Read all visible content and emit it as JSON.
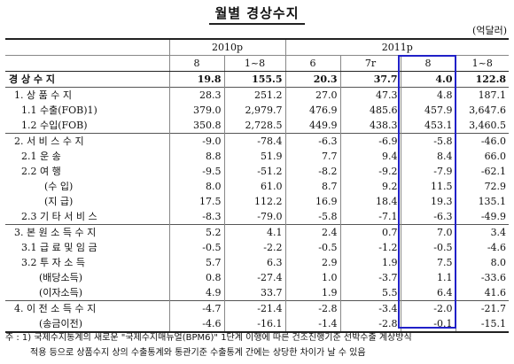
{
  "title": "월별 경상수지",
  "unit": "(억달러)",
  "header": {
    "group_2010": "2010p",
    "group_2011": "2011p",
    "columns": [
      "8",
      "1~8",
      "6",
      "7r",
      "8",
      "1~8"
    ]
  },
  "rows": [
    {
      "label": "경 상 수 지",
      "values": [
        "19.8",
        "155.5",
        "20.3",
        "37.7",
        "4.0",
        "122.8"
      ]
    },
    {
      "label": "1. 상 품 수 지",
      "values": [
        "28.3",
        "251.2",
        "27.0",
        "47.3",
        "4.8",
        "187.1"
      ]
    },
    {
      "label": "1.1 수출(FOB)1)",
      "values": [
        "379.0",
        "2,979.7",
        "476.9",
        "485.6",
        "457.9",
        "3,647.6"
      ]
    },
    {
      "label": "1.2 수입(FOB)",
      "values": [
        "350.8",
        "2,728.5",
        "449.9",
        "438.3",
        "453.1",
        "3,460.5"
      ]
    },
    {
      "label": "2. 서 비 스 수 지",
      "values": [
        "-9.0",
        "-78.4",
        "-6.3",
        "-6.9",
        "-5.8",
        "-46.0"
      ]
    },
    {
      "label": "2.1 운     송",
      "values": [
        "8.8",
        "51.9",
        "7.7",
        "9.4",
        "8.4",
        "66.0"
      ]
    },
    {
      "label": "2.2 여     행",
      "values": [
        "-9.5",
        "-51.2",
        "-8.2",
        "-9.2",
        "-7.9",
        "-62.1"
      ]
    },
    {
      "label": "(수     입)",
      "values": [
        "8.0",
        "61.0",
        "8.7",
        "9.2",
        "11.5",
        "72.9"
      ]
    },
    {
      "label": "(지     급)",
      "values": [
        "17.5",
        "112.2",
        "16.9",
        "18.4",
        "19.3",
        "135.1"
      ]
    },
    {
      "label": "2.3 기 타 서 비 스",
      "values": [
        "-8.3",
        "-79.0",
        "-5.8",
        "-7.1",
        "-6.3",
        "-49.9"
      ]
    },
    {
      "label": "3. 본 원 소 득 수 지",
      "values": [
        "5.2",
        "4.1",
        "2.4",
        "0.7",
        "7.0",
        "3.4"
      ]
    },
    {
      "label": "3.1 급 료 및 임 금",
      "values": [
        "-0.5",
        "-2.2",
        "-0.5",
        "-1.2",
        "-0.5",
        "-4.6"
      ]
    },
    {
      "label": "3.2 투 자 소 득",
      "values": [
        "5.7",
        "6.3",
        "2.9",
        "1.9",
        "7.5",
        "8.0"
      ]
    },
    {
      "label": "(배당소득)",
      "values": [
        "0.8",
        "-27.4",
        "1.0",
        "-3.7",
        "1.1",
        "-33.6"
      ]
    },
    {
      "label": "(이자소득)",
      "values": [
        "4.9",
        "33.7",
        "1.9",
        "5.5",
        "6.4",
        "41.6"
      ]
    },
    {
      "label": "4. 이 전 소 득 수 지",
      "values": [
        "-4.7",
        "-21.4",
        "-2.8",
        "-3.4",
        "-2.0",
        "-21.7"
      ]
    },
    {
      "label": "(송금이전)",
      "values": [
        "-4.6",
        "-16.1",
        "-1.4",
        "-2.8",
        "-0.1",
        "-15.1"
      ]
    }
  ],
  "note": {
    "line1": "주 : 1) 국제수지통계의 새로운 \"국제수지매뉴얼(BPM6)\" 1단계 이행에 따른 건조진행기준 선박수출 계상방식",
    "line2": "적용 등으로 상품수지 상의 수출통계와 통관기준 수출통계 간에는 상당한 차이가 날 수 있음"
  },
  "colors": {
    "highlight": "#2020c8"
  }
}
